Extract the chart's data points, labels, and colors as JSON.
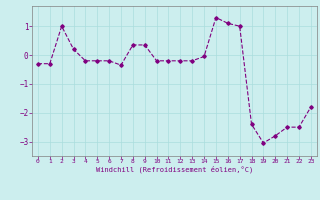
{
  "x": [
    0,
    1,
    2,
    3,
    4,
    5,
    6,
    7,
    8,
    9,
    10,
    11,
    12,
    13,
    14,
    15,
    16,
    17,
    18,
    19,
    20,
    21,
    22,
    23
  ],
  "y": [
    -0.3,
    -0.3,
    1.0,
    0.2,
    -0.2,
    -0.2,
    -0.2,
    -0.35,
    0.35,
    0.35,
    -0.2,
    -0.2,
    -0.2,
    -0.2,
    -0.05,
    1.3,
    1.1,
    1.0,
    -2.4,
    -3.05,
    -2.8,
    -2.5,
    -2.5,
    -1.8
  ],
  "line_color": "#800080",
  "marker": "D",
  "marker_size": 1.8,
  "background_color": "#cceeee",
  "grid_color": "#aadddd",
  "xlabel": "Windchill (Refroidissement éolien,°C)",
  "xlabel_color": "#800080",
  "tick_color": "#800080",
  "spine_color": "#808080",
  "xlim": [
    -0.5,
    23.5
  ],
  "ylim": [
    -3.5,
    1.7
  ],
  "yticks": [
    -3,
    -2,
    -1,
    0,
    1
  ],
  "xticks": [
    0,
    1,
    2,
    3,
    4,
    5,
    6,
    7,
    8,
    9,
    10,
    11,
    12,
    13,
    14,
    15,
    16,
    17,
    18,
    19,
    20,
    21,
    22,
    23
  ]
}
